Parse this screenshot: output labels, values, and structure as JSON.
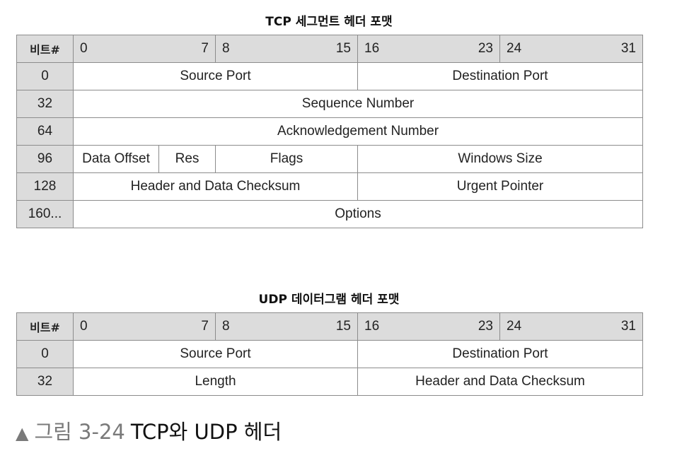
{
  "tcp": {
    "title": "TCP 세그먼트 헤더 포맷",
    "corner": "비트#",
    "bit_headers": [
      {
        "start": "0",
        "end": "7"
      },
      {
        "start": "8",
        "end": "15"
      },
      {
        "start": "16",
        "end": "23"
      },
      {
        "start": "24",
        "end": "31"
      }
    ],
    "rows": {
      "r0": {
        "offset": "0",
        "source_port": "Source Port",
        "destination_port": "Destination Port"
      },
      "r32": {
        "offset": "32",
        "sequence_number": "Sequence Number"
      },
      "r64": {
        "offset": "64",
        "ack_number": "Acknowledgement Number"
      },
      "r96": {
        "offset": "96",
        "data_offset": "Data Offset",
        "res": "Res",
        "flags": "Flags",
        "window_size": "Windows Size"
      },
      "r128": {
        "offset": "128",
        "checksum": "Header and Data Checksum",
        "urgent_pointer": "Urgent Pointer"
      },
      "r160": {
        "offset": "160...",
        "options": "Options"
      }
    }
  },
  "udp": {
    "title": "UDP 데이터그램 헤더 포맷",
    "corner": "비트#",
    "bit_headers": [
      {
        "start": "0",
        "end": "7"
      },
      {
        "start": "8",
        "end": "15"
      },
      {
        "start": "16",
        "end": "23"
      },
      {
        "start": "24",
        "end": "31"
      }
    ],
    "rows": {
      "r0": {
        "offset": "0",
        "source_port": "Source Port",
        "destination_port": "Destination Port"
      },
      "r32": {
        "offset": "32",
        "length": "Length",
        "checksum": "Header and Data Checksum"
      }
    }
  },
  "figure_caption": {
    "marker": "▲",
    "number": "그림 3-24",
    "text": "TCP와 UDP 헤더"
  }
}
